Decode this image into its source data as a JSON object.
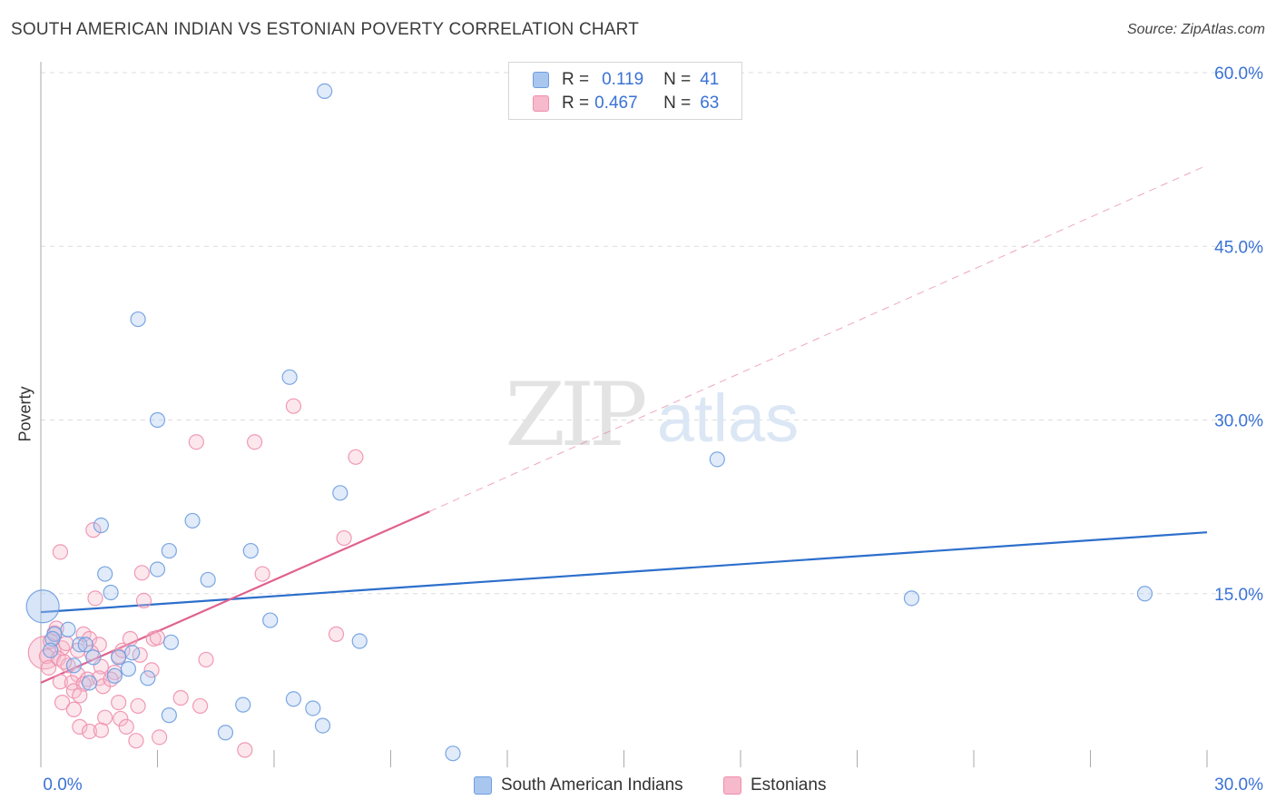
{
  "title": "SOUTH AMERICAN INDIAN VS ESTONIAN POVERTY CORRELATION CHART",
  "source": "Source: ZipAtlas.com",
  "watermark": {
    "zip": "ZIP",
    "atlas": "atlas"
  },
  "legend": {
    "r_label": "R =",
    "n_label": "N =",
    "rows": [
      {
        "name": "South American Indians",
        "r": "0.119",
        "n": "41",
        "fill": "#a9c6ef",
        "stroke": "#6d9de0"
      },
      {
        "name": "Estonians",
        "r": "0.467",
        "n": "63",
        "fill": "#f7b9cc",
        "stroke": "#ee8fae"
      }
    ]
  },
  "colors": {
    "blue_fill": "#a9c6ef",
    "blue_stroke": "#6d9de0",
    "blue_line": "#2d6fcc",
    "pink_fill": "#f7b9cc",
    "pink_stroke": "#ee8fae",
    "pink_line": "#e0618e",
    "axis_label": "#3a72d6",
    "grid": "#dddddd"
  },
  "chart_data": {
    "type": "scatter",
    "title": "SOUTH AMERICAN INDIAN VS ESTONIAN POVERTY CORRELATION CHART",
    "xlabel": "",
    "ylabel": "Poverty",
    "xlim": [
      0,
      30
    ],
    "ylim": [
      0,
      60
    ],
    "x_tick_labels": [
      "0.0%",
      "30.0%"
    ],
    "y_ticks": [
      15,
      30,
      45,
      60
    ],
    "y_tick_labels": [
      "15.0%",
      "30.0%",
      "45.0%",
      "60.0%"
    ],
    "grid": true,
    "series": [
      {
        "name": "South American Indians",
        "r": 0.119,
        "n": 41,
        "trend": {
          "x": [
            0,
            30
          ],
          "y": [
            13.4,
            20.3
          ],
          "dashed_extension": false
        },
        "points": [
          {
            "x": 0.05,
            "y": 13.9,
            "big": true
          },
          {
            "x": 7.3,
            "y": 58.4
          },
          {
            "x": 2.5,
            "y": 38.7
          },
          {
            "x": 6.4,
            "y": 33.7
          },
          {
            "x": 3.0,
            "y": 30.0
          },
          {
            "x": 17.4,
            "y": 26.6
          },
          {
            "x": 7.7,
            "y": 23.7
          },
          {
            "x": 3.9,
            "y": 21.3
          },
          {
            "x": 1.55,
            "y": 20.9
          },
          {
            "x": 3.3,
            "y": 18.7
          },
          {
            "x": 5.4,
            "y": 18.7
          },
          {
            "x": 1.65,
            "y": 16.7
          },
          {
            "x": 3.0,
            "y": 17.1
          },
          {
            "x": 4.3,
            "y": 16.2
          },
          {
            "x": 1.8,
            "y": 15.1
          },
          {
            "x": 22.4,
            "y": 14.6
          },
          {
            "x": 28.4,
            "y": 15.0
          },
          {
            "x": 5.9,
            "y": 12.7
          },
          {
            "x": 8.2,
            "y": 10.9
          },
          {
            "x": 0.7,
            "y": 11.9
          },
          {
            "x": 0.35,
            "y": 11.5
          },
          {
            "x": 0.3,
            "y": 11.1
          },
          {
            "x": 1.0,
            "y": 10.6
          },
          {
            "x": 1.15,
            "y": 10.6
          },
          {
            "x": 3.35,
            "y": 10.8
          },
          {
            "x": 2.35,
            "y": 9.9
          },
          {
            "x": 2.0,
            "y": 9.5
          },
          {
            "x": 1.35,
            "y": 9.5
          },
          {
            "x": 0.85,
            "y": 8.8
          },
          {
            "x": 2.25,
            "y": 8.5
          },
          {
            "x": 1.9,
            "y": 7.9
          },
          {
            "x": 2.75,
            "y": 7.7
          },
          {
            "x": 1.25,
            "y": 7.3
          },
          {
            "x": 6.5,
            "y": 5.9
          },
          {
            "x": 5.2,
            "y": 5.4
          },
          {
            "x": 7.0,
            "y": 5.1
          },
          {
            "x": 3.3,
            "y": 4.5
          },
          {
            "x": 7.25,
            "y": 3.6
          },
          {
            "x": 4.75,
            "y": 3.0
          },
          {
            "x": 10.6,
            "y": 1.2
          },
          {
            "x": 0.25,
            "y": 10.1
          }
        ]
      },
      {
        "name": "Estonians",
        "r": 0.467,
        "n": 63,
        "trend": {
          "x": [
            0,
            10
          ],
          "y": [
            7.3,
            22.1
          ],
          "dashed_to": {
            "x": 30,
            "y": 52.0
          }
        },
        "points": [
          {
            "x": 0.1,
            "y": 9.9,
            "big": true
          },
          {
            "x": 6.5,
            "y": 31.2
          },
          {
            "x": 4.0,
            "y": 28.1
          },
          {
            "x": 5.5,
            "y": 28.1
          },
          {
            "x": 8.1,
            "y": 26.8
          },
          {
            "x": 7.8,
            "y": 19.8
          },
          {
            "x": 0.5,
            "y": 18.6
          },
          {
            "x": 1.35,
            "y": 20.5
          },
          {
            "x": 2.6,
            "y": 16.8
          },
          {
            "x": 5.7,
            "y": 16.7
          },
          {
            "x": 1.4,
            "y": 14.6
          },
          {
            "x": 2.65,
            "y": 14.4
          },
          {
            "x": 7.6,
            "y": 11.5
          },
          {
            "x": 0.35,
            "y": 11.6
          },
          {
            "x": 1.1,
            "y": 11.5
          },
          {
            "x": 1.25,
            "y": 11.1
          },
          {
            "x": 2.3,
            "y": 11.1
          },
          {
            "x": 2.9,
            "y": 11.1
          },
          {
            "x": 1.5,
            "y": 10.6
          },
          {
            "x": 0.55,
            "y": 10.3
          },
          {
            "x": 0.95,
            "y": 10.1
          },
          {
            "x": 0.15,
            "y": 9.6
          },
          {
            "x": 0.45,
            "y": 9.4
          },
          {
            "x": 2.0,
            "y": 9.6
          },
          {
            "x": 2.55,
            "y": 9.7
          },
          {
            "x": 4.25,
            "y": 9.3
          },
          {
            "x": 0.7,
            "y": 8.8
          },
          {
            "x": 0.2,
            "y": 8.6
          },
          {
            "x": 1.55,
            "y": 8.7
          },
          {
            "x": 2.85,
            "y": 8.4
          },
          {
            "x": 0.95,
            "y": 8.0
          },
          {
            "x": 1.2,
            "y": 7.6
          },
          {
            "x": 1.5,
            "y": 7.7
          },
          {
            "x": 0.5,
            "y": 7.4
          },
          {
            "x": 0.8,
            "y": 7.3
          },
          {
            "x": 1.1,
            "y": 7.2
          },
          {
            "x": 1.6,
            "y": 7.0
          },
          {
            "x": 0.85,
            "y": 6.6
          },
          {
            "x": 1.0,
            "y": 6.2
          },
          {
            "x": 3.6,
            "y": 6.0
          },
          {
            "x": 0.55,
            "y": 5.6
          },
          {
            "x": 2.0,
            "y": 5.6
          },
          {
            "x": 2.5,
            "y": 5.3
          },
          {
            "x": 4.1,
            "y": 5.3
          },
          {
            "x": 0.85,
            "y": 5.0
          },
          {
            "x": 1.65,
            "y": 4.3
          },
          {
            "x": 2.05,
            "y": 4.2
          },
          {
            "x": 1.0,
            "y": 3.5
          },
          {
            "x": 2.2,
            "y": 3.5
          },
          {
            "x": 1.25,
            "y": 3.1
          },
          {
            "x": 1.55,
            "y": 3.2
          },
          {
            "x": 3.05,
            "y": 2.6
          },
          {
            "x": 2.45,
            "y": 2.3
          },
          {
            "x": 5.25,
            "y": 1.5
          },
          {
            "x": 0.25,
            "y": 10.9
          },
          {
            "x": 0.65,
            "y": 10.7
          },
          {
            "x": 1.3,
            "y": 9.9
          },
          {
            "x": 1.9,
            "y": 8.2
          },
          {
            "x": 0.4,
            "y": 12.0
          },
          {
            "x": 3.0,
            "y": 11.2
          },
          {
            "x": 0.6,
            "y": 9.1
          },
          {
            "x": 1.8,
            "y": 7.6
          },
          {
            "x": 2.1,
            "y": 10.1
          }
        ]
      }
    ]
  }
}
